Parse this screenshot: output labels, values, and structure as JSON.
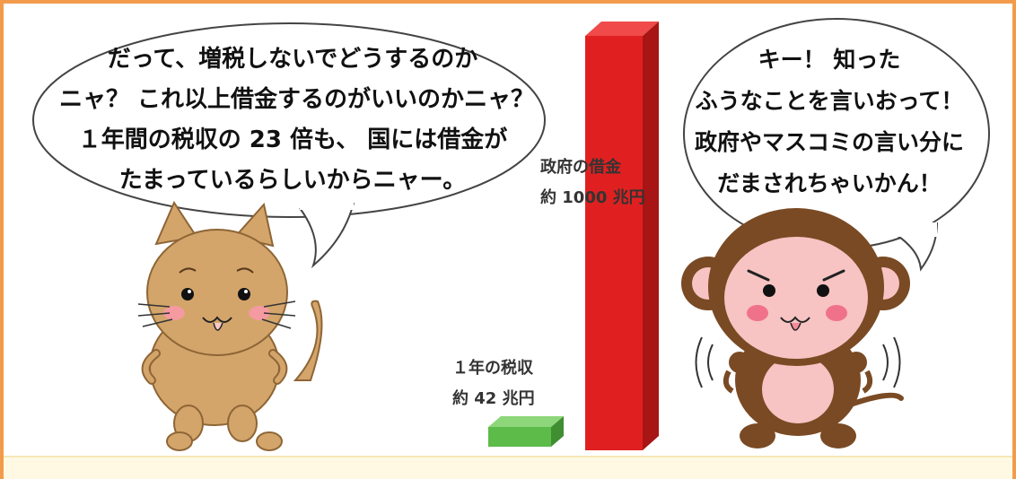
{
  "cat_speech": {
    "lines": [
      "だって、増税しないでどうするのか",
      "ニャ？ これ以上借金するのがいいのかニャ？",
      "１年間の税収の 23 倍も、 国には借金が",
      "たまっているらしいからニャー。"
    ]
  },
  "monkey_speech": {
    "lines": [
      "キー！ 知った",
      "ふうなことを言いおって！",
      "政府やマスコミの言い分に",
      "だまされちゃいかん！"
    ]
  },
  "bars": {
    "debt": {
      "label_line1": "政府の借金",
      "label_line2": "約 1000 兆円",
      "value": 1000,
      "color": "#E02020"
    },
    "tax": {
      "label_line1": "１年の税収",
      "label_line2": "約 42 兆円",
      "value": 42,
      "color": "#5DBB4A"
    }
  },
  "colors": {
    "frame": "#F29B4B",
    "cat_fur": "#D3A56B",
    "monkey_fur": "#7A4A24",
    "monkey_face": "#F7C3C3"
  }
}
